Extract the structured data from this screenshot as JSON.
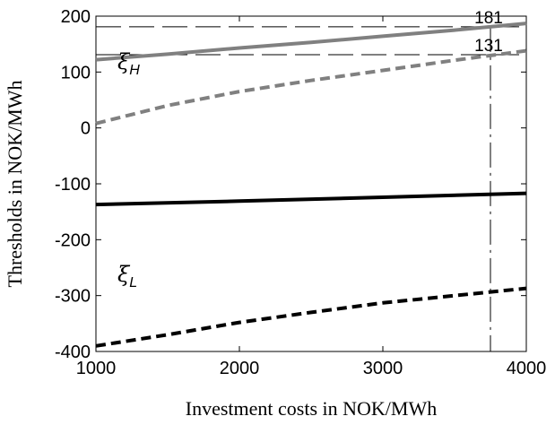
{
  "chart_data": {
    "type": "line",
    "title": "",
    "xlabel": "Investment costs in NOK/MWh",
    "ylabel": "Thresholds in NOK/MWh",
    "xlim": [
      1000,
      4000
    ],
    "ylim": [
      -400,
      200
    ],
    "xticks": [
      1000,
      2000,
      3000,
      4000
    ],
    "yticks": [
      200,
      100,
      0,
      -100,
      -200,
      -300,
      -400
    ],
    "grid": false,
    "legend": "none",
    "series": [
      {
        "color": "#808080",
        "style": "solid",
        "x": [
          1000,
          1500,
          2000,
          2500,
          3000,
          3500,
          4000
        ],
        "y": [
          122,
          132,
          143,
          153,
          164,
          175,
          187
        ]
      },
      {
        "color": "#808080",
        "style": "dashed",
        "x": [
          1000,
          1500,
          2000,
          2500,
          3000,
          3500,
          4000
        ],
        "y": [
          8,
          40,
          65,
          85,
          103,
          121,
          138
        ]
      },
      {
        "color": "#000000",
        "style": "solid",
        "x": [
          1000,
          2000,
          3000,
          4000
        ],
        "y": [
          -137,
          -131,
          -124,
          -117
        ]
      },
      {
        "color": "#000000",
        "style": "dashed",
        "x": [
          1000,
          1500,
          2000,
          2500,
          3000,
          3500,
          4000
        ],
        "y": [
          -390,
          -370,
          -348,
          -330,
          -313,
          -300,
          -287
        ]
      }
    ],
    "reference_lines": {
      "horizontal": [
        {
          "y": 181,
          "label": "181"
        },
        {
          "y": 131,
          "label": "131"
        }
      ],
      "vertical": [
        {
          "x": 3750
        }
      ]
    },
    "annotations": [
      {
        "symbol": "ξ",
        "subscript": "H",
        "x": 1150,
        "y": 105
      },
      {
        "symbol": "ξ",
        "subscript": "L",
        "x": 1150,
        "y": -275
      }
    ]
  }
}
